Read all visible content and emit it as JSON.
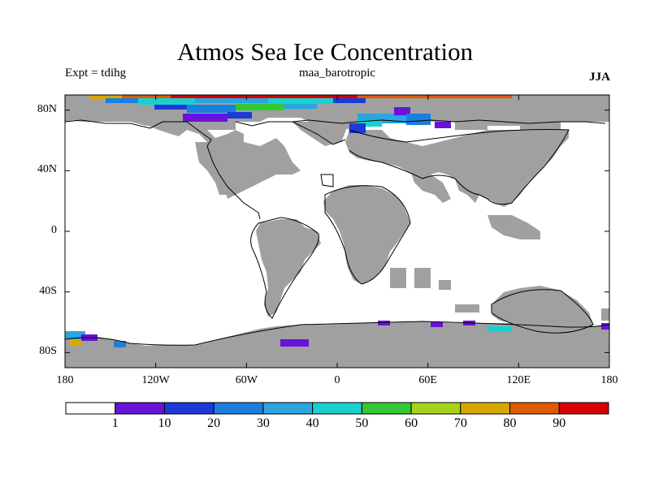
{
  "header": {
    "title": "Atmos Sea Ice Concentration",
    "left_label": "Expt = tdihg",
    "center_label": "maa_barotropic",
    "right_label": "JJA"
  },
  "axes": {
    "y_ticks": [
      {
        "label": "80N",
        "lat": 80
      },
      {
        "label": "40N",
        "lat": 40
      },
      {
        "label": "0",
        "lat": 0
      },
      {
        "label": "40S",
        "lat": -40
      },
      {
        "label": "80S",
        "lat": -80
      }
    ],
    "x_ticks": [
      {
        "label": "180",
        "lon": -180
      },
      {
        "label": "120W",
        "lon": -120
      },
      {
        "label": "60W",
        "lon": -60
      },
      {
        "label": "0",
        "lon": 0
      },
      {
        "label": "60E",
        "lon": 60
      },
      {
        "label": "120E",
        "lon": 120
      },
      {
        "label": "180",
        "lon": 180
      }
    ],
    "lon_range": [
      -180,
      180
    ],
    "lat_range": [
      -90,
      90
    ]
  },
  "colorbar": {
    "labels": [
      "1",
      "10",
      "20",
      "30",
      "40",
      "50",
      "60",
      "70",
      "80",
      "90"
    ],
    "colors": [
      "#ffffff",
      "#6a12d8",
      "#1c3ad8",
      "#1b7fe0",
      "#2aa5e0",
      "#19d0d0",
      "#34c834",
      "#a8d218",
      "#d8a800",
      "#e05a00",
      "#d80000"
    ]
  },
  "colors": {
    "land_mask": "#a0a0a0",
    "coastline": "#000000",
    "ocean": "#ffffff"
  }
}
